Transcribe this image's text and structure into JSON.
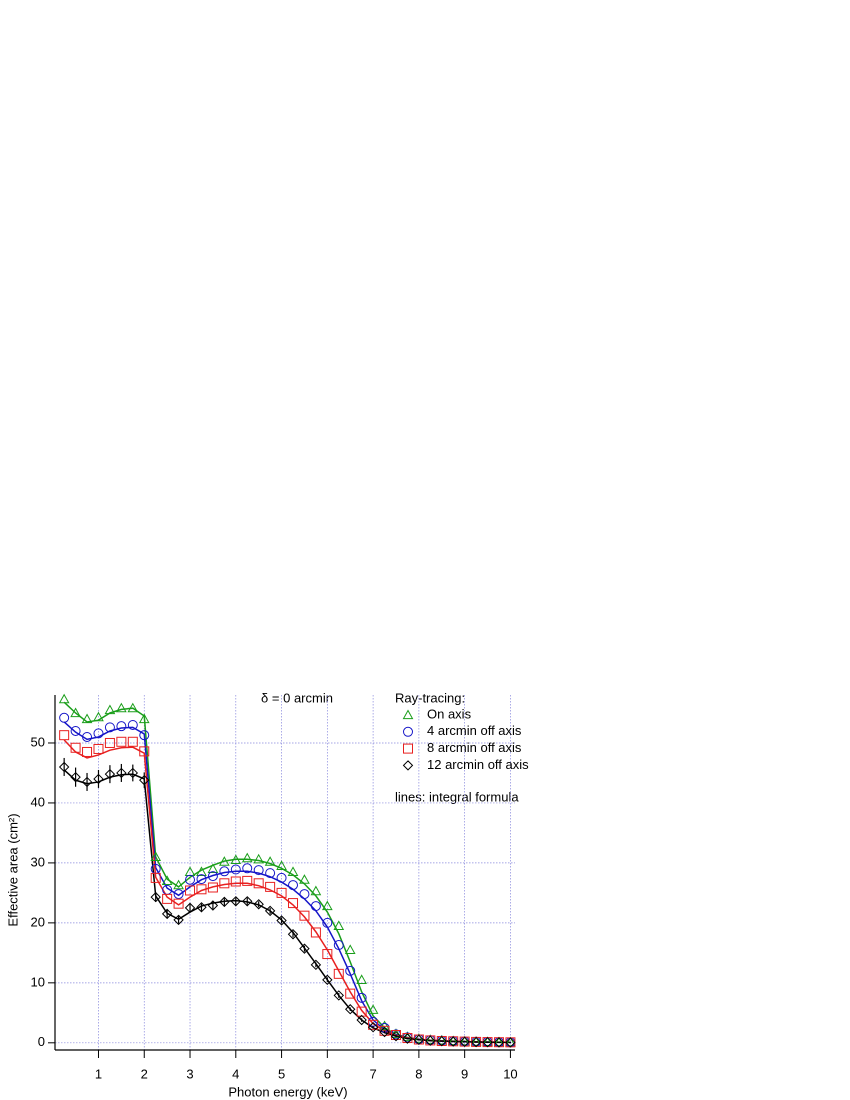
{
  "chart_data": {
    "type": "line",
    "annotation": "δ = 0 arcmin",
    "legend_title": "Ray-tracing:",
    "note": "lines: integral formula",
    "xlabel": "Photon energy (keV)",
    "ylabel": "Effective area (cm²)",
    "xlim": [
      0.05,
      10.1
    ],
    "ylim": [
      -1.2,
      58
    ],
    "xticks": [
      1,
      2,
      3,
      4,
      5,
      6,
      7,
      8,
      9,
      10
    ],
    "yticks": [
      0,
      10,
      20,
      30,
      40,
      50
    ],
    "grid": true,
    "legend": "upper right",
    "x": [
      0.25,
      0.5,
      0.75,
      1.0,
      1.25,
      1.5,
      1.75,
      2.0,
      2.25,
      2.5,
      2.75,
      3.0,
      3.25,
      3.5,
      3.75,
      4.0,
      4.25,
      4.5,
      4.75,
      5.0,
      5.25,
      5.5,
      5.75,
      6.0,
      6.25,
      6.5,
      6.75,
      7.0,
      7.25,
      7.5,
      7.75,
      8.0,
      8.25,
      8.5,
      8.75,
      9.0,
      9.25,
      9.5,
      9.75,
      10.0
    ],
    "series": [
      {
        "name": "On axis",
        "color": "#1a9e1a",
        "marker": "triangle",
        "values": [
          57.3,
          55,
          54,
          54.3,
          55.5,
          55.8,
          55.8,
          54,
          31,
          27,
          26.3,
          28.5,
          28.5,
          29,
          30.2,
          30.5,
          30.8,
          30.6,
          30.2,
          29.5,
          28.5,
          27.2,
          25.3,
          22.8,
          19.5,
          15.5,
          10.5,
          5.5,
          2.8,
          1.5,
          1.0,
          0.7,
          0.5,
          0.4,
          0.3,
          0.25,
          0.2,
          0.15,
          0.1,
          0.1
        ]
      },
      {
        "name": "4 arcmin off axis",
        "color": "#1515c8",
        "marker": "circle",
        "values": [
          54.2,
          52,
          51,
          51.6,
          52.6,
          52.8,
          53,
          51.3,
          29,
          25.5,
          24.8,
          27.2,
          27.3,
          27.8,
          28.6,
          28.9,
          29.1,
          28.8,
          28.3,
          27.5,
          26.3,
          24.8,
          22.8,
          20,
          16.3,
          12,
          7.5,
          3.5,
          2.5,
          1.4,
          0.9,
          0.6,
          0.45,
          0.35,
          0.28,
          0.22,
          0.18,
          0.14,
          0.1,
          0.08
        ]
      },
      {
        "name": "8 arcmin off axis",
        "color": "#e82020",
        "marker": "square",
        "values": [
          51.3,
          49.2,
          48.5,
          49,
          50,
          50.2,
          50.2,
          48.6,
          27.5,
          24,
          23.2,
          25.4,
          25.6,
          25.9,
          26.6,
          26.9,
          27,
          26.6,
          26,
          25,
          23.3,
          21.2,
          18.4,
          14.8,
          11.5,
          8.2,
          5.2,
          3,
          2,
          1.3,
          0.8,
          0.55,
          0.4,
          0.3,
          0.25,
          0.2,
          0.15,
          0.12,
          0.1,
          0.08
        ]
      },
      {
        "name": "12 arcmin off axis",
        "color": "#000000",
        "marker": "diamond",
        "values": [
          46,
          44.3,
          43.5,
          44,
          44.8,
          45,
          45,
          43.8,
          24.3,
          21.5,
          20.5,
          22.5,
          22.6,
          22.9,
          23.5,
          23.6,
          23.6,
          23.1,
          22,
          20.4,
          18.1,
          15.7,
          13,
          10.5,
          7.9,
          5.6,
          3.8,
          2.6,
          1.8,
          1.1,
          0.7,
          0.5,
          0.35,
          0.28,
          0.22,
          0.17,
          0.13,
          0.1,
          0.08,
          0.06
        ],
        "errors": [
          1.5,
          1.6,
          1.5,
          1.5,
          1.5,
          1.5,
          1.4,
          1.3,
          0.8,
          0.7,
          0.6,
          0.6,
          0.6,
          0.6,
          0.6,
          0.6,
          0.6,
          0.5,
          0.5,
          0.5,
          0.5,
          0.5,
          0.4,
          0.4,
          0.4,
          0.3,
          0.3,
          0.2,
          0.2,
          0.2,
          0.1,
          0.1,
          0.1,
          0.1,
          0.1,
          0.1,
          0.1,
          0.1,
          0.1,
          0.1
        ]
      },
      {
        "color": "#1a9e1a",
        "style": "line",
        "values": [
          56.8,
          55,
          53.5,
          53.8,
          55,
          55.6,
          55.8,
          54.5,
          31,
          27.3,
          26,
          27.6,
          28.8,
          29.6,
          30.3,
          30.6,
          30.6,
          30.4,
          29.9,
          29.1,
          28,
          26.5,
          24.5,
          21.8,
          18.2,
          13.5,
          8.5,
          4.5,
          2.5,
          1.4,
          0.9,
          0.6,
          0.45,
          0.35,
          0.28,
          0.22,
          0.18,
          0.14,
          0.11,
          0.09
        ]
      },
      {
        "color": "#1515c8",
        "style": "line",
        "values": [
          53.5,
          51.8,
          50.6,
          51,
          52,
          52.5,
          52.6,
          51.5,
          29.2,
          25.8,
          24.6,
          26,
          27.2,
          27.9,
          28.4,
          28.6,
          28.6,
          28.3,
          27.7,
          26.8,
          25.6,
          24,
          22,
          19.3,
          15.7,
          11.5,
          7,
          3.8,
          2.2,
          1.3,
          0.85,
          0.6,
          0.43,
          0.33,
          0.26,
          0.2,
          0.16,
          0.13,
          0.1,
          0.08
        ]
      },
      {
        "color": "#e82020",
        "style": "line",
        "values": [
          50.5,
          48.5,
          47.5,
          48,
          48.8,
          49.2,
          49.3,
          48.3,
          27.6,
          24.3,
          23,
          24.3,
          25.4,
          26,
          26.4,
          26.6,
          26.6,
          26.2,
          25.5,
          24.5,
          23,
          21,
          18.5,
          15.5,
          12,
          8.5,
          5.4,
          3.2,
          2,
          1.2,
          0.8,
          0.55,
          0.4,
          0.3,
          0.24,
          0.19,
          0.15,
          0.12,
          0.1,
          0.08
        ]
      },
      {
        "color": "#000000",
        "style": "line",
        "values": [
          45.5,
          43.8,
          43.2,
          43.5,
          44.3,
          44.7,
          44.8,
          44,
          24.5,
          21.6,
          20.6,
          21.8,
          22.8,
          23.3,
          23.6,
          23.7,
          23.5,
          23,
          22,
          20.5,
          18.4,
          15.8,
          13.2,
          10.5,
          7.9,
          5.6,
          3.8,
          2.5,
          1.7,
          1.1,
          0.7,
          0.5,
          0.35,
          0.27,
          0.21,
          0.17,
          0.13,
          0.1,
          0.08,
          0.06
        ]
      }
    ]
  }
}
